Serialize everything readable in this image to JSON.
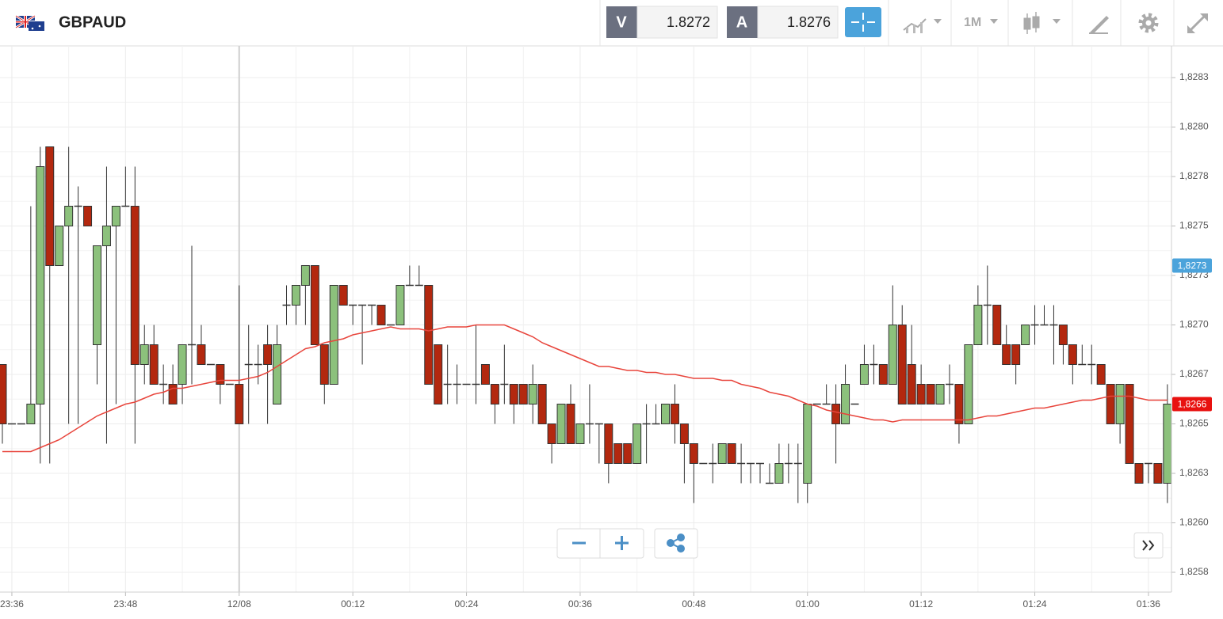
{
  "header": {
    "symbol": "GBPAUD",
    "sell_label": "V",
    "sell_price": "1.8272",
    "buy_label": "A",
    "buy_price": "1.8276",
    "timeframe": "1M"
  },
  "chart_data": {
    "type": "candlestick",
    "categories": [
      null,
      "23:36",
      null,
      null,
      null,
      null,
      null,
      null,
      null,
      null,
      null,
      null,
      null,
      "23:48",
      null,
      null,
      null,
      null,
      null,
      null,
      null,
      null,
      null,
      null,
      null,
      "12/08",
      null,
      null,
      null,
      null,
      null,
      null,
      null,
      null,
      null,
      null,
      null,
      "00:12",
      null,
      null,
      null,
      null,
      null,
      null,
      null,
      null,
      null,
      null,
      null,
      "00:24",
      null,
      null,
      null,
      null,
      null,
      null,
      null,
      null,
      null,
      null,
      null,
      "00:36",
      null,
      null,
      null,
      null,
      null,
      null,
      null,
      null,
      null,
      null,
      null,
      "00:48",
      null,
      null,
      null,
      null,
      null,
      null,
      null,
      null,
      null,
      null,
      null,
      "01:00",
      null,
      null,
      null,
      null,
      null,
      null,
      null,
      null,
      null,
      null,
      null,
      "01:12",
      null,
      null,
      null,
      null,
      null,
      null,
      null,
      null,
      null,
      null,
      null,
      "01:24",
      null,
      null,
      null,
      null,
      null,
      null,
      null,
      null,
      null,
      null,
      null,
      "01:36",
      null,
      null
    ],
    "candles": {
      "up_color": "#8cc17c",
      "down_color": "#b3280f",
      "open": [
        1.8268,
        1.8265,
        1.8265,
        1.8265,
        1.8266,
        1.8279,
        1.8273,
        1.8275,
        1.8276,
        1.8276,
        1.8269,
        1.8274,
        1.8275,
        1.8276,
        1.8276,
        1.8268,
        1.8269,
        1.8267,
        1.8267,
        1.8267,
        1.8269,
        1.8269,
        1.8268,
        1.8268,
        1.8267,
        1.8267,
        1.8268,
        1.8268,
        1.8269,
        1.8266,
        1.8271,
        1.8271,
        1.8272,
        1.8273,
        1.8269,
        1.8267,
        1.8272,
        1.8271,
        1.8271,
        1.8271,
        1.8271,
        1.827,
        1.827,
        1.8272,
        1.8272,
        1.8272,
        1.8269,
        1.8267,
        1.8267,
        1.8267,
        1.8267,
        1.8268,
        1.8267,
        1.8267,
        1.8267,
        1.8267,
        1.8266,
        1.8267,
        1.8265,
        1.8264,
        1.8266,
        1.8264,
        1.8265,
        1.8265,
        1.8265,
        1.8264,
        1.8264,
        1.8263,
        1.8265,
        1.8265,
        1.8265,
        1.8266,
        1.8265,
        1.8264,
        1.8263,
        1.8263,
        1.8263,
        1.8264,
        1.8263,
        1.8263,
        1.8263,
        1.8262,
        1.8262,
        1.8263,
        1.8263,
        1.8262,
        1.8266,
        1.8266,
        1.8266,
        1.8265,
        1.8266,
        1.8267,
        1.8268,
        1.8268,
        1.8267,
        1.827,
        1.8268,
        1.8267,
        1.8267,
        1.8266,
        1.8267,
        1.8267,
        1.8265,
        1.8269,
        1.8271,
        1.8271,
        1.8269,
        1.8269,
        1.8269,
        1.827,
        1.827,
        1.827,
        1.827,
        1.8269,
        1.8268,
        1.8268,
        1.8268,
        1.8267,
        1.8265,
        1.8267,
        1.8263,
        1.8263,
        1.8263,
        1.8262
      ],
      "high": [
        1.8268,
        1.8265,
        1.8265,
        1.8276,
        1.8279,
        1.8279,
        1.8275,
        1.8279,
        1.8277,
        1.8276,
        1.8274,
        1.8278,
        1.8276,
        1.8278,
        1.8278,
        1.827,
        1.827,
        1.8268,
        1.8268,
        1.8269,
        1.8274,
        1.827,
        1.8268,
        1.8268,
        1.8267,
        1.8272,
        1.827,
        1.8269,
        1.827,
        1.827,
        1.8272,
        1.8272,
        1.8273,
        1.8273,
        1.8269,
        1.8272,
        1.8272,
        1.8271,
        1.8271,
        1.8271,
        1.8271,
        1.827,
        1.8272,
        1.8273,
        1.8273,
        1.8272,
        1.8269,
        1.8269,
        1.8268,
        1.8267,
        1.827,
        1.8268,
        1.8267,
        1.8269,
        1.8267,
        1.8267,
        1.8268,
        1.8267,
        1.8265,
        1.8266,
        1.8267,
        1.8265,
        1.8267,
        1.8265,
        1.8265,
        1.8264,
        1.8264,
        1.8265,
        1.8266,
        1.8266,
        1.8266,
        1.8267,
        1.8265,
        1.8264,
        1.8263,
        1.8264,
        1.8264,
        1.8264,
        1.8264,
        1.8263,
        1.8263,
        1.8263,
        1.8264,
        1.8264,
        1.8264,
        1.8266,
        1.8266,
        1.8267,
        1.8267,
        1.8268,
        1.8266,
        1.8269,
        1.8269,
        1.8268,
        1.8272,
        1.8271,
        1.827,
        1.8268,
        1.8267,
        1.8267,
        1.8268,
        1.8267,
        1.8269,
        1.8272,
        1.8273,
        1.8271,
        1.827,
        1.8269,
        1.827,
        1.8271,
        1.8271,
        1.8271,
        1.827,
        1.8269,
        1.8269,
        1.8269,
        1.8268,
        1.8267,
        1.8267,
        1.8267,
        1.8263,
        1.8263,
        1.8263,
        1.8267
      ],
      "low": [
        1.8264,
        1.8265,
        1.8265,
        1.8265,
        1.8263,
        1.8263,
        1.8273,
        1.8265,
        1.8265,
        1.8275,
        1.8267,
        1.8264,
        1.8266,
        1.8276,
        1.8264,
        1.8267,
        1.8267,
        1.8266,
        1.8266,
        1.8266,
        1.8267,
        1.8268,
        1.8268,
        1.8266,
        1.8267,
        1.8265,
        1.8265,
        1.8267,
        1.8265,
        1.8266,
        1.827,
        1.827,
        1.827,
        1.8269,
        1.8266,
        1.8267,
        1.8271,
        1.827,
        1.8268,
        1.827,
        1.827,
        1.827,
        1.827,
        1.8272,
        1.8272,
        1.8267,
        1.8266,
        1.8266,
        1.8266,
        1.8267,
        1.8266,
        1.8267,
        1.8265,
        1.8266,
        1.8265,
        1.8266,
        1.8265,
        1.8265,
        1.8263,
        1.8264,
        1.8264,
        1.8264,
        1.8264,
        1.8263,
        1.8262,
        1.8263,
        1.8263,
        1.8263,
        1.8263,
        1.8265,
        1.8265,
        1.8264,
        1.8262,
        1.8261,
        1.8263,
        1.8262,
        1.8263,
        1.8263,
        1.8262,
        1.8262,
        1.8262,
        1.8262,
        1.8262,
        1.8262,
        1.8261,
        1.8261,
        1.8266,
        1.8266,
        1.8263,
        1.8265,
        1.8266,
        1.8267,
        1.8267,
        1.8267,
        1.8267,
        1.8266,
        1.8266,
        1.8266,
        1.8266,
        1.8266,
        1.8266,
        1.8264,
        1.8265,
        1.8269,
        1.8269,
        1.8269,
        1.8268,
        1.8267,
        1.8269,
        1.8269,
        1.827,
        1.8268,
        1.8268,
        1.8267,
        1.8268,
        1.8267,
        1.8267,
        1.8265,
        1.8264,
        1.8263,
        1.8262,
        1.8262,
        1.8262,
        1.8261
      ],
      "close": [
        1.8265,
        1.8265,
        1.8265,
        1.8266,
        1.8278,
        1.8273,
        1.8275,
        1.8276,
        1.8276,
        1.8275,
        1.8274,
        1.8275,
        1.8276,
        1.8276,
        1.8268,
        1.8269,
        1.8267,
        1.8267,
        1.8266,
        1.8269,
        1.8269,
        1.8268,
        1.8268,
        1.8267,
        1.8267,
        1.8265,
        1.8268,
        1.8268,
        1.8268,
        1.8269,
        1.8271,
        1.8272,
        1.8273,
        1.8269,
        1.8267,
        1.8272,
        1.8271,
        1.8271,
        1.8271,
        1.8271,
        1.827,
        1.827,
        1.8272,
        1.8272,
        1.8272,
        1.8267,
        1.8266,
        1.8267,
        1.8267,
        1.8267,
        1.8267,
        1.8267,
        1.8266,
        1.8267,
        1.8266,
        1.8266,
        1.8267,
        1.8265,
        1.8264,
        1.8266,
        1.8264,
        1.8265,
        1.8265,
        1.8265,
        1.8263,
        1.8263,
        1.8263,
        1.8265,
        1.8265,
        1.8265,
        1.8266,
        1.8265,
        1.8264,
        1.8263,
        1.8263,
        1.8263,
        1.8264,
        1.8263,
        1.8263,
        1.8263,
        1.8263,
        1.8262,
        1.8263,
        1.8263,
        1.8263,
        1.8266,
        1.8266,
        1.8266,
        1.8265,
        1.8267,
        1.8266,
        1.8268,
        1.8268,
        1.8267,
        1.827,
        1.8266,
        1.8266,
        1.8266,
        1.8266,
        1.8267,
        1.8267,
        1.8265,
        1.8269,
        1.8271,
        1.8271,
        1.8269,
        1.8268,
        1.8268,
        1.827,
        1.827,
        1.827,
        1.827,
        1.8269,
        1.8268,
        1.8268,
        1.8268,
        1.8267,
        1.8265,
        1.8267,
        1.8263,
        1.8262,
        1.8263,
        1.8262,
        1.8266
      ]
    },
    "moving_average": {
      "color": "#e8453c",
      "values": [
        1.82636,
        1.82636,
        1.82636,
        1.82636,
        1.82638,
        1.8264,
        1.82642,
        1.82645,
        1.82648,
        1.82651,
        1.82654,
        1.82656,
        1.82658,
        1.8266,
        1.82661,
        1.82663,
        1.82665,
        1.82666,
        1.82668,
        1.82668,
        1.82669,
        1.8267,
        1.82671,
        1.82672,
        1.82672,
        1.82672,
        1.82673,
        1.82674,
        1.82676,
        1.82679,
        1.82682,
        1.82685,
        1.82688,
        1.82689,
        1.82691,
        1.82692,
        1.82693,
        1.82695,
        1.82696,
        1.82697,
        1.82698,
        1.82699,
        1.82698,
        1.82698,
        1.82698,
        1.82697,
        1.82698,
        1.82699,
        1.82699,
        1.82699,
        1.827,
        1.827,
        1.827,
        1.827,
        1.82698,
        1.82696,
        1.82694,
        1.82691,
        1.82689,
        1.82687,
        1.82685,
        1.82683,
        1.82681,
        1.82679,
        1.82679,
        1.82678,
        1.82677,
        1.82677,
        1.82676,
        1.82676,
        1.82675,
        1.82675,
        1.82674,
        1.82673,
        1.82673,
        1.82673,
        1.82672,
        1.82672,
        1.8267,
        1.82669,
        1.82668,
        1.82666,
        1.82665,
        1.82664,
        1.82662,
        1.8266,
        1.82659,
        1.82657,
        1.82656,
        1.82655,
        1.82654,
        1.82653,
        1.82652,
        1.82652,
        1.82651,
        1.82652,
        1.82652,
        1.82652,
        1.82652,
        1.82652,
        1.82652,
        1.82652,
        1.82652,
        1.82653,
        1.82654,
        1.82654,
        1.82655,
        1.82656,
        1.82657,
        1.82658,
        1.82658,
        1.82659,
        1.8266,
        1.82661,
        1.82662,
        1.82662,
        1.82663,
        1.82664,
        1.82664,
        1.82664,
        1.82663,
        1.82662,
        1.82662,
        1.82662
      ]
    },
    "price_markers": [
      {
        "value": 1.8273,
        "label": "1,8273",
        "color": "#4ba3db"
      },
      {
        "value": 1.8266,
        "label": "1,8266",
        "color": "#e8110f"
      }
    ],
    "ylim": [
      1.82565,
      1.82841
    ],
    "yticks": [
      {
        "value": 1.82575,
        "label": "1,8258"
      },
      {
        "value": 1.826,
        "label": "1,8260"
      },
      {
        "value": 1.82625,
        "label": "1,8263"
      },
      {
        "value": 1.8265,
        "label": "1,8265"
      },
      {
        "value": 1.82675,
        "label": "1,8267"
      },
      {
        "value": 1.827,
        "label": "1,8270"
      },
      {
        "value": 1.82725,
        "label": "1,8273"
      },
      {
        "value": 1.8275,
        "label": "1,8275"
      },
      {
        "value": 1.82775,
        "label": "1,8278"
      },
      {
        "value": 1.828,
        "label": "1,8280"
      },
      {
        "value": 1.82825,
        "label": "1,8283"
      }
    ],
    "grid": true
  }
}
